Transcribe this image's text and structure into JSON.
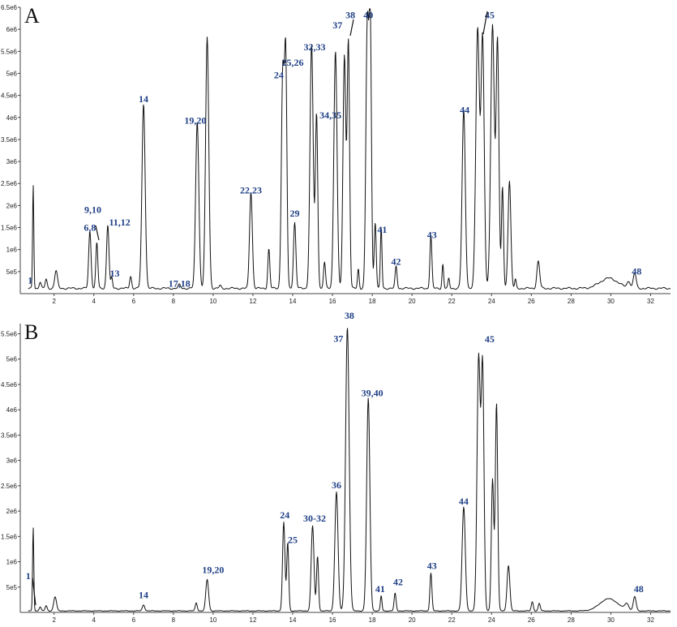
{
  "chart_data": [
    {
      "panel": "A",
      "type": "line",
      "xlim": [
        0.3,
        33
      ],
      "ylim": [
        0,
        6500000
      ],
      "x_ticks": [
        2,
        4,
        6,
        8,
        10,
        12,
        14,
        16,
        18,
        20,
        22,
        24,
        26,
        28,
        30,
        32
      ],
      "y_ticks": [
        {
          "v": 500000,
          "label": "5e5"
        },
        {
          "v": 1000000,
          "label": "1e6"
        },
        {
          "v": 1500000,
          "label": "1.5e6"
        },
        {
          "v": 2000000,
          "label": "2e6"
        },
        {
          "v": 2500000,
          "label": "2.5e6"
        },
        {
          "v": 3000000,
          "label": "3e6"
        },
        {
          "v": 3500000,
          "label": "3.5e6"
        },
        {
          "v": 4000000,
          "label": "4e6"
        },
        {
          "v": 4500000,
          "label": "4.5e6"
        },
        {
          "v": 5000000,
          "label": "5e6"
        },
        {
          "v": 5500000,
          "label": "5.5e6"
        },
        {
          "v": 6000000,
          "label": "6e6"
        },
        {
          "v": 6500000,
          "label": "6.5e6"
        }
      ],
      "baseline": 120000,
      "peaks": [
        [
          0.95,
          2350000,
          0.03
        ],
        [
          1.3,
          150000,
          0.05
        ],
        [
          1.6,
          200000,
          0.05
        ],
        [
          2.1,
          400000,
          0.07
        ],
        [
          3.8,
          1300000,
          0.06
        ],
        [
          4.15,
          1050000,
          0.05
        ],
        [
          4.7,
          1450000,
          0.06
        ],
        [
          4.9,
          250000,
          0.04
        ],
        [
          5.85,
          280000,
          0.05
        ],
        [
          6.5,
          4200000,
          0.08
        ],
        [
          8.3,
          80000,
          0.06
        ],
        [
          9.2,
          3800000,
          0.08
        ],
        [
          9.7,
          5700000,
          0.08
        ],
        [
          10.35,
          60000,
          0.05
        ],
        [
          11.9,
          2200000,
          0.07
        ],
        [
          12.8,
          900000,
          0.05
        ],
        [
          13.5,
          4900000,
          0.07
        ],
        [
          13.65,
          5100000,
          0.06
        ],
        [
          14.1,
          1500000,
          0.06
        ],
        [
          14.95,
          5550000,
          0.08
        ],
        [
          15.2,
          3950000,
          0.06
        ],
        [
          15.6,
          600000,
          0.05
        ],
        [
          16.15,
          5400000,
          0.08
        ],
        [
          16.6,
          5300000,
          0.07
        ],
        [
          16.8,
          5600000,
          0.06
        ],
        [
          17.3,
          450000,
          0.04
        ],
        [
          17.75,
          5950000,
          0.07
        ],
        [
          17.9,
          6000000,
          0.06
        ],
        [
          18.15,
          1500000,
          0.05
        ],
        [
          18.45,
          1400000,
          0.04
        ],
        [
          19.2,
          500000,
          0.05
        ],
        [
          20.95,
          1200000,
          0.05
        ],
        [
          21.55,
          550000,
          0.04
        ],
        [
          21.85,
          220000,
          0.04
        ],
        [
          22.6,
          4050000,
          0.08
        ],
        [
          23.3,
          5900000,
          0.09
        ],
        [
          23.55,
          5700000,
          0.08
        ],
        [
          24.05,
          6000000,
          0.09
        ],
        [
          24.3,
          5600000,
          0.07
        ],
        [
          24.55,
          2300000,
          0.05
        ],
        [
          24.9,
          2450000,
          0.07
        ],
        [
          25.2,
          200000,
          0.04
        ],
        [
          26.35,
          620000,
          0.07
        ],
        [
          29.9,
          230000,
          0.45
        ],
        [
          30.9,
          150000,
          0.08
        ],
        [
          31.2,
          350000,
          0.07
        ]
      ],
      "annotations": [
        {
          "text": "1",
          "x": 0.8,
          "y": 230000
        },
        {
          "text": "6,8",
          "x": 3.8,
          "y": 1430000
        },
        {
          "text": "9,10",
          "x": 3.95,
          "y": 1830000
        },
        {
          "text": "11,12",
          "x": 5.3,
          "y": 1550000
        },
        {
          "text": "13",
          "x": 5.05,
          "y": 390000
        },
        {
          "text": "14",
          "x": 6.5,
          "y": 4350000
        },
        {
          "text": "17,18",
          "x": 8.3,
          "y": 160000
        },
        {
          "text": "19,20",
          "x": 9.1,
          "y": 3860000
        },
        {
          "text": "22,23",
          "x": 11.9,
          "y": 2270000
        },
        {
          "text": "24",
          "x": 13.3,
          "y": 4890000
        },
        {
          "text": "25,26",
          "x": 14.0,
          "y": 5170000
        },
        {
          "text": "29",
          "x": 14.1,
          "y": 1750000
        },
        {
          "text": "32,33",
          "x": 15.1,
          "y": 5520000
        },
        {
          "text": "34,35",
          "x": 15.9,
          "y": 3980000
        },
        {
          "text": "37",
          "x": 16.25,
          "y": 6020000
        },
        {
          "text": "38",
          "x": 16.9,
          "y": 6250000
        },
        {
          "text": "40",
          "x": 17.8,
          "y": 6250000
        },
        {
          "text": "41",
          "x": 18.5,
          "y": 1380000
        },
        {
          "text": "42",
          "x": 19.2,
          "y": 650000
        },
        {
          "text": "43",
          "x": 21.0,
          "y": 1260000
        },
        {
          "text": "44",
          "x": 22.65,
          "y": 4100000
        },
        {
          "text": "45",
          "x": 23.9,
          "y": 6250000
        },
        {
          "text": "48",
          "x": 31.3,
          "y": 430000
        }
      ]
    },
    {
      "panel": "B",
      "type": "line",
      "xlim": [
        0.3,
        33
      ],
      "ylim": [
        0,
        5700000
      ],
      "x_ticks": [
        2,
        4,
        6,
        8,
        10,
        12,
        14,
        16,
        18,
        20,
        22,
        24,
        26,
        28,
        30,
        32
      ],
      "y_ticks": [
        {
          "v": 500000,
          "label": "5e5"
        },
        {
          "v": 1000000,
          "label": "1e6"
        },
        {
          "v": 1500000,
          "label": "1.5e6"
        },
        {
          "v": 2000000,
          "label": "2e6"
        },
        {
          "v": 2500000,
          "label": "2.5e6"
        },
        {
          "v": 3000000,
          "label": "3e6"
        },
        {
          "v": 3500000,
          "label": "3.5e6"
        },
        {
          "v": 4000000,
          "label": "4e6"
        },
        {
          "v": 4500000,
          "label": "4.5e6"
        },
        {
          "v": 5000000,
          "label": "5e6"
        },
        {
          "v": 5500000,
          "label": "5.5e6"
        }
      ],
      "baseline": 30000,
      "peaks": [
        [
          0.95,
          1650000,
          0.03
        ],
        [
          1.3,
          80000,
          0.05
        ],
        [
          1.6,
          100000,
          0.05
        ],
        [
          2.05,
          280000,
          0.07
        ],
        [
          6.5,
          120000,
          0.06
        ],
        [
          9.15,
          160000,
          0.05
        ],
        [
          9.7,
          620000,
          0.07
        ],
        [
          13.55,
          1750000,
          0.06
        ],
        [
          13.75,
          1350000,
          0.05
        ],
        [
          15.0,
          1680000,
          0.07
        ],
        [
          15.25,
          1080000,
          0.05
        ],
        [
          16.2,
          2350000,
          0.08
        ],
        [
          16.75,
          5600000,
          0.09
        ],
        [
          17.8,
          4200000,
          0.08
        ],
        [
          18.45,
          300000,
          0.04
        ],
        [
          19.15,
          350000,
          0.05
        ],
        [
          20.95,
          750000,
          0.05
        ],
        [
          22.6,
          2050000,
          0.08
        ],
        [
          23.35,
          5000000,
          0.08
        ],
        [
          23.55,
          4800000,
          0.07
        ],
        [
          24.05,
          2600000,
          0.06
        ],
        [
          24.25,
          4100000,
          0.06
        ],
        [
          24.85,
          900000,
          0.07
        ],
        [
          26.05,
          180000,
          0.05
        ],
        [
          26.4,
          150000,
          0.05
        ],
        [
          29.9,
          240000,
          0.45
        ],
        [
          30.8,
          120000,
          0.1
        ],
        [
          31.2,
          280000,
          0.07
        ]
      ],
      "annotations": [
        {
          "text": "1",
          "x": 0.7,
          "y": 660000
        },
        {
          "text": "14",
          "x": 6.5,
          "y": 280000
        },
        {
          "text": "19,20",
          "x": 10.0,
          "y": 780000
        },
        {
          "text": "24",
          "x": 13.6,
          "y": 1860000
        },
        {
          "text": "25",
          "x": 14.0,
          "y": 1370000
        },
        {
          "text": "30-32",
          "x": 15.1,
          "y": 1790000
        },
        {
          "text": "36",
          "x": 16.2,
          "y": 2450000
        },
        {
          "text": "37",
          "x": 16.3,
          "y": 5340000
        },
        {
          "text": "38",
          "x": 16.85,
          "y": 5800000
        },
        {
          "text": "39,40",
          "x": 18.0,
          "y": 4270000
        },
        {
          "text": "41",
          "x": 18.4,
          "y": 400000
        },
        {
          "text": "42",
          "x": 19.3,
          "y": 540000
        },
        {
          "text": "43",
          "x": 21.0,
          "y": 860000
        },
        {
          "text": "44",
          "x": 22.6,
          "y": 2130000
        },
        {
          "text": "45",
          "x": 23.9,
          "y": 5330000
        },
        {
          "text": "48",
          "x": 31.4,
          "y": 400000
        }
      ]
    }
  ]
}
